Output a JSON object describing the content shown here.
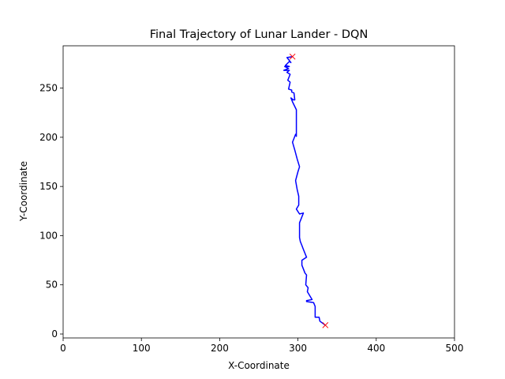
{
  "chart_data": {
    "type": "line",
    "title": "Final Trajectory of Lunar Lander - DQN",
    "xlabel": "X-Coordinate",
    "ylabel": "Y-Coordinate",
    "xlim": [
      0,
      500
    ],
    "ylim": [
      -4,
      293
    ],
    "xticks": [
      0,
      100,
      200,
      300,
      400,
      500
    ],
    "yticks": [
      0,
      50,
      100,
      150,
      200,
      250
    ],
    "grid": false,
    "colors": {
      "line": "#0000ff",
      "marker": "#ff0000",
      "axes": "#000000",
      "background": "#ffffff"
    },
    "series": [
      {
        "x": [
          293,
          286,
          291,
          289,
          284,
          289,
          283,
          288,
          282,
          289,
          286,
          290,
          287,
          290,
          288,
          292,
          292,
          295,
          296,
          294,
          291,
          293,
          298,
          298,
          297,
          293,
          296,
          299,
          302,
          300,
          297,
          299,
          301,
          301,
          298,
          302,
          307,
          302,
          302,
          302,
          303,
          305,
          307,
          311,
          305,
          305,
          309,
          311,
          310,
          313,
          312,
          318,
          311,
          311,
          320,
          322,
          322,
          327,
          328,
          335
        ],
        "y": [
          282,
          281,
          276,
          277,
          273,
          272,
          272,
          270,
          268,
          268,
          266,
          264,
          258,
          256,
          249,
          248,
          246,
          245,
          238,
          238,
          240,
          236,
          228,
          201,
          203,
          195,
          187,
          178,
          170,
          165,
          156,
          147,
          140,
          131,
          127,
          122,
          123,
          113,
          104,
          98,
          94,
          90,
          86,
          78,
          75,
          70,
          62,
          60,
          50,
          47,
          43,
          35,
          34,
          33,
          32,
          28,
          17,
          17,
          13,
          9
        ]
      }
    ],
    "markers": [
      {
        "x": 293,
        "y": 282,
        "shape": "x"
      },
      {
        "x": 335,
        "y": 9,
        "shape": "x"
      }
    ]
  }
}
